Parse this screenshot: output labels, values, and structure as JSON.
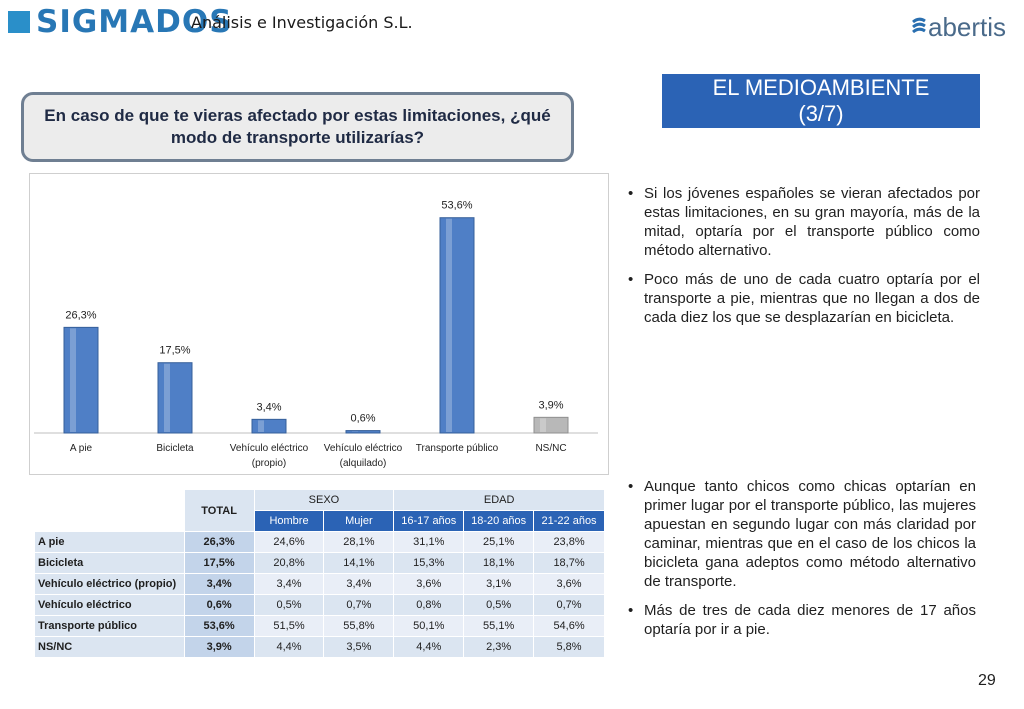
{
  "header": {
    "logo": "SIGMADOS",
    "company": "Análisis e Investigación S.L.",
    "partner_logo": "abertis"
  },
  "section_title_line1": "EL MEDIOAMBIENTE",
  "section_title_line2": "(3/7)",
  "question": "En caso de que te vieras afectado por estas limitaciones, ¿qué modo de transporte utilizarías?",
  "colors": {
    "bar": "#4f7fc6",
    "bar_highlight": "#b8b8b8",
    "title_bg": "#2b63b5"
  },
  "chart_data": {
    "type": "bar",
    "categories": [
      [
        "A pie"
      ],
      [
        "Bicicleta"
      ],
      [
        "Vehículo eléctrico",
        "(propio)"
      ],
      [
        "Vehículo eléctrico",
        "(alquilado)"
      ],
      [
        "Transporte público"
      ],
      [
        "NS/NC"
      ]
    ],
    "values": [
      26.3,
      17.5,
      3.4,
      0.6,
      53.6,
      3.9
    ],
    "value_labels": [
      "26,3%",
      "17,5%",
      "3,4%",
      "0,6%",
      "53,6%",
      "3,9%"
    ],
    "ylim": [
      0,
      60
    ],
    "grid": false,
    "legend": "none"
  },
  "bullets_top": [
    "Si los jóvenes españoles se vieran afectados por estas limitaciones, en su gran mayoría, más de la mitad, optaría por el transporte público como método alternativo.",
    "Poco más de uno de cada cuatro optaría por el transporte a pie, mientras que no llegan a dos de cada diez los que se desplazarían en bicicleta."
  ],
  "bullets_bottom": [
    "Aunque tanto chicos como chicas optarían en primer lugar por el transporte público, las mujeres apuestan en segundo lugar con más claridad por caminar, mientras que en el caso de los chicos la bicicleta gana adeptos como método alternativo de transporte.",
    "Más de tres de cada diez menores de 17 años optaría por ir a pie."
  ],
  "table": {
    "total_header": "TOTAL",
    "group_headers": [
      "SEXO",
      "EDAD"
    ],
    "sub_headers": [
      "Hombre",
      "Mujer",
      "16-17 años",
      "18-20 años",
      "21-22 años"
    ],
    "rows": [
      {
        "label": "A pie",
        "total": "26,3%",
        "values": [
          "24,6%",
          "28,1%",
          "31,1%",
          "25,1%",
          "23,8%"
        ]
      },
      {
        "label": "Bicicleta",
        "total": "17,5%",
        "values": [
          "20,8%",
          "14,1%",
          "15,3%",
          "18,1%",
          "18,7%"
        ]
      },
      {
        "label": "Vehículo eléctrico (propio)",
        "total": "3,4%",
        "values": [
          "3,4%",
          "3,4%",
          "3,6%",
          "3,1%",
          "3,6%"
        ]
      },
      {
        "label": "Vehículo eléctrico",
        "total": "0,6%",
        "values": [
          "0,5%",
          "0,7%",
          "0,8%",
          "0,5%",
          "0,7%"
        ]
      },
      {
        "label": "Transporte público",
        "total": "53,6%",
        "values": [
          "51,5%",
          "55,8%",
          "50,1%",
          "55,1%",
          "54,6%"
        ]
      },
      {
        "label": "NS/NC",
        "total": "3,9%",
        "values": [
          "4,4%",
          "3,5%",
          "4,4%",
          "2,3%",
          "5,8%"
        ]
      }
    ]
  },
  "page_number": "29"
}
